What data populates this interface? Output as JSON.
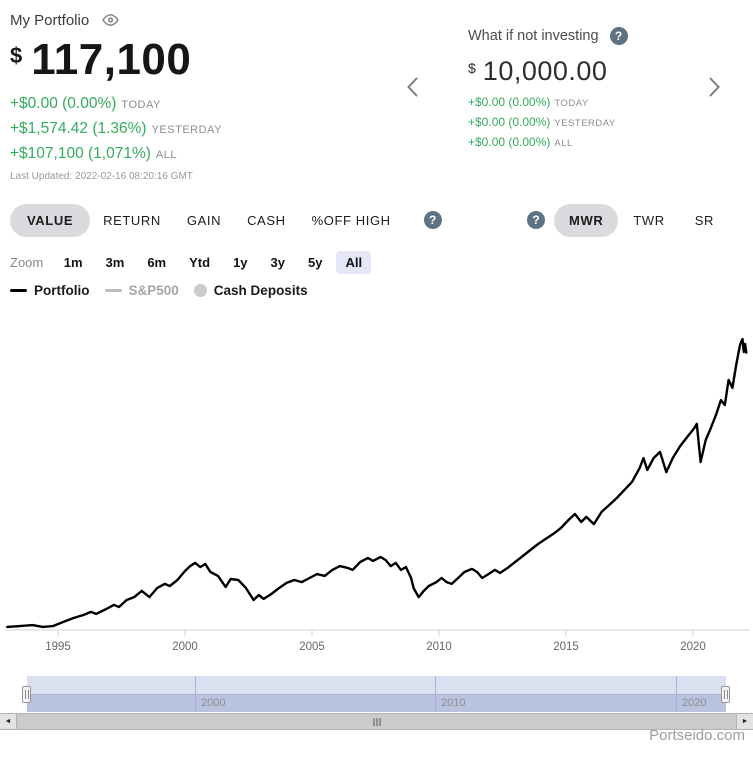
{
  "header": {
    "portfolio": {
      "title": "My Portfolio",
      "currency_symbol": "$",
      "value": "117,100",
      "changes": [
        {
          "text": "+$0.00 (0.00%)",
          "period": "TODAY"
        },
        {
          "text": "+$1,574.42 (1.36%)",
          "period": "YESTERDAY"
        },
        {
          "text": "+$107,100 (1,071%)",
          "period": "ALL"
        }
      ],
      "last_updated": "Last Updated: 2022-02-16 08:20:16 GMT"
    },
    "comparison": {
      "title": "What if not investing",
      "currency_symbol": "$",
      "value": "10,000.00",
      "changes": [
        {
          "text": "+$0.00 (0.00%)",
          "period": "TODAY"
        },
        {
          "text": "+$0.00 (0.00%)",
          "period": "YESTERDAY"
        },
        {
          "text": "+$0.00 (0.00%)",
          "period": "ALL"
        }
      ]
    }
  },
  "tabs": {
    "left": [
      "VALUE",
      "RETURN",
      "GAIN",
      "CASH",
      "%OFF HIGH"
    ],
    "left_selected": "VALUE",
    "right": [
      "MWR",
      "TWR",
      "SR"
    ],
    "right_selected": "MWR"
  },
  "zoom_bar": {
    "label": "Zoom",
    "options": [
      "1m",
      "3m",
      "6m",
      "Ytd",
      "1y",
      "3y",
      "5y",
      "All"
    ],
    "selected": "All"
  },
  "legend": {
    "items": [
      {
        "label": "Portfolio",
        "marker": "line",
        "color": "#000000",
        "label_color": "#1a1a1a",
        "dimmed": false
      },
      {
        "label": "S&P500",
        "marker": "line",
        "color": "#bcbcbc",
        "label_color": "#a6a6a6",
        "dimmed": true
      },
      {
        "label": "Cash Deposits",
        "marker": "circle",
        "color": "#cacaca",
        "label_color": "#1a1a1a",
        "dimmed": false
      }
    ]
  },
  "chart_data": {
    "type": "line",
    "title": "",
    "xlabel": "",
    "ylabel": "",
    "x_ticks": [
      1995,
      2000,
      2005,
      2010,
      2015,
      2020
    ],
    "x_range": [
      1993.0,
      2022.15
    ],
    "y_range_usd": [
      10000,
      125000
    ],
    "y_axis_visible": false,
    "grid": false,
    "legend_position": "top-left",
    "series": [
      {
        "name": "Portfolio",
        "color": "#000000",
        "unit": "USD",
        "points": [
          [
            1993.0,
            11200
          ],
          [
            1993.5,
            11500
          ],
          [
            1994.0,
            11900
          ],
          [
            1994.4,
            11200
          ],
          [
            1994.8,
            11500
          ],
          [
            1995.2,
            13100
          ],
          [
            1995.6,
            14600
          ],
          [
            1996.0,
            15800
          ],
          [
            1996.3,
            17000
          ],
          [
            1996.5,
            16200
          ],
          [
            1996.9,
            18100
          ],
          [
            1997.2,
            19700
          ],
          [
            1997.4,
            18900
          ],
          [
            1997.7,
            21600
          ],
          [
            1998.0,
            22700
          ],
          [
            1998.3,
            25100
          ],
          [
            1998.6,
            22700
          ],
          [
            1998.9,
            26200
          ],
          [
            1999.2,
            27800
          ],
          [
            1999.4,
            27000
          ],
          [
            1999.7,
            29300
          ],
          [
            2000.0,
            32800
          ],
          [
            2000.2,
            34700
          ],
          [
            2000.4,
            35900
          ],
          [
            2000.6,
            34300
          ],
          [
            2000.8,
            35500
          ],
          [
            2001.0,
            32400
          ],
          [
            2001.3,
            30900
          ],
          [
            2001.6,
            26600
          ],
          [
            2001.8,
            29700
          ],
          [
            2002.1,
            29300
          ],
          [
            2002.4,
            26200
          ],
          [
            2002.7,
            21600
          ],
          [
            2002.9,
            23500
          ],
          [
            2003.1,
            22000
          ],
          [
            2003.4,
            23900
          ],
          [
            2003.7,
            26200
          ],
          [
            2004.0,
            28200
          ],
          [
            2004.3,
            29300
          ],
          [
            2004.6,
            28500
          ],
          [
            2004.9,
            30100
          ],
          [
            2005.2,
            31600
          ],
          [
            2005.5,
            30900
          ],
          [
            2005.8,
            33200
          ],
          [
            2006.1,
            34700
          ],
          [
            2006.4,
            34000
          ],
          [
            2006.6,
            33200
          ],
          [
            2006.9,
            36300
          ],
          [
            2007.2,
            37800
          ],
          [
            2007.4,
            36700
          ],
          [
            2007.7,
            38200
          ],
          [
            2007.9,
            37000
          ],
          [
            2008.1,
            34700
          ],
          [
            2008.3,
            35900
          ],
          [
            2008.5,
            33200
          ],
          [
            2008.7,
            34300
          ],
          [
            2008.9,
            30100
          ],
          [
            2009.0,
            26200
          ],
          [
            2009.2,
            22700
          ],
          [
            2009.4,
            25100
          ],
          [
            2009.6,
            27000
          ],
          [
            2009.9,
            28500
          ],
          [
            2010.1,
            30100
          ],
          [
            2010.3,
            28500
          ],
          [
            2010.5,
            27800
          ],
          [
            2010.8,
            30500
          ],
          [
            2011.0,
            32400
          ],
          [
            2011.3,
            33600
          ],
          [
            2011.5,
            32400
          ],
          [
            2011.7,
            30100
          ],
          [
            2011.9,
            31300
          ],
          [
            2012.2,
            33200
          ],
          [
            2012.4,
            32000
          ],
          [
            2012.7,
            34000
          ],
          [
            2013.0,
            36300
          ],
          [
            2013.3,
            38600
          ],
          [
            2013.6,
            40900
          ],
          [
            2013.9,
            43200
          ],
          [
            2014.2,
            45200
          ],
          [
            2014.5,
            47100
          ],
          [
            2014.8,
            49400
          ],
          [
            2015.1,
            52500
          ],
          [
            2015.35,
            54800
          ],
          [
            2015.6,
            51700
          ],
          [
            2015.8,
            53700
          ],
          [
            2016.1,
            50900
          ],
          [
            2016.4,
            55600
          ],
          [
            2016.7,
            58300
          ],
          [
            2017.0,
            61000
          ],
          [
            2017.3,
            64100
          ],
          [
            2017.6,
            67200
          ],
          [
            2017.9,
            72600
          ],
          [
            2018.05,
            76400
          ],
          [
            2018.2,
            71800
          ],
          [
            2018.45,
            76400
          ],
          [
            2018.7,
            78800
          ],
          [
            2018.95,
            71000
          ],
          [
            2019.2,
            76400
          ],
          [
            2019.5,
            81100
          ],
          [
            2019.8,
            84900
          ],
          [
            2020.05,
            88000
          ],
          [
            2020.15,
            89600
          ],
          [
            2020.3,
            74900
          ],
          [
            2020.5,
            83400
          ],
          [
            2020.7,
            88000
          ],
          [
            2020.9,
            93000
          ],
          [
            2021.1,
            98800
          ],
          [
            2021.25,
            96900
          ],
          [
            2021.4,
            106600
          ],
          [
            2021.55,
            103500
          ],
          [
            2021.7,
            112400
          ],
          [
            2021.85,
            120100
          ],
          [
            2021.95,
            122400
          ],
          [
            2022.0,
            117400
          ],
          [
            2022.05,
            120500
          ],
          [
            2022.1,
            117100
          ]
        ]
      }
    ]
  },
  "navigator": {
    "tick_years": [
      2000,
      2010,
      2020
    ],
    "range_years": [
      1993.0,
      2022.1
    ]
  },
  "icons": {
    "help_glyph": "?",
    "scroll_left_glyph": "◄",
    "scroll_right_glyph": "►"
  },
  "watermark": "Portseido.com",
  "colors": {
    "gain_green": "#35ab5e",
    "muted_gray": "#8d8d8d",
    "help_icon_bg": "#5d7384",
    "tab_pill_gray": "#d9dbdf",
    "zoom_pill_lavender": "#e5e7f8",
    "navigator_top": "#dbe0f0",
    "navigator_bottom": "#b9c2de",
    "axis_line": "#ccd2e2",
    "series_line": "#000000"
  }
}
